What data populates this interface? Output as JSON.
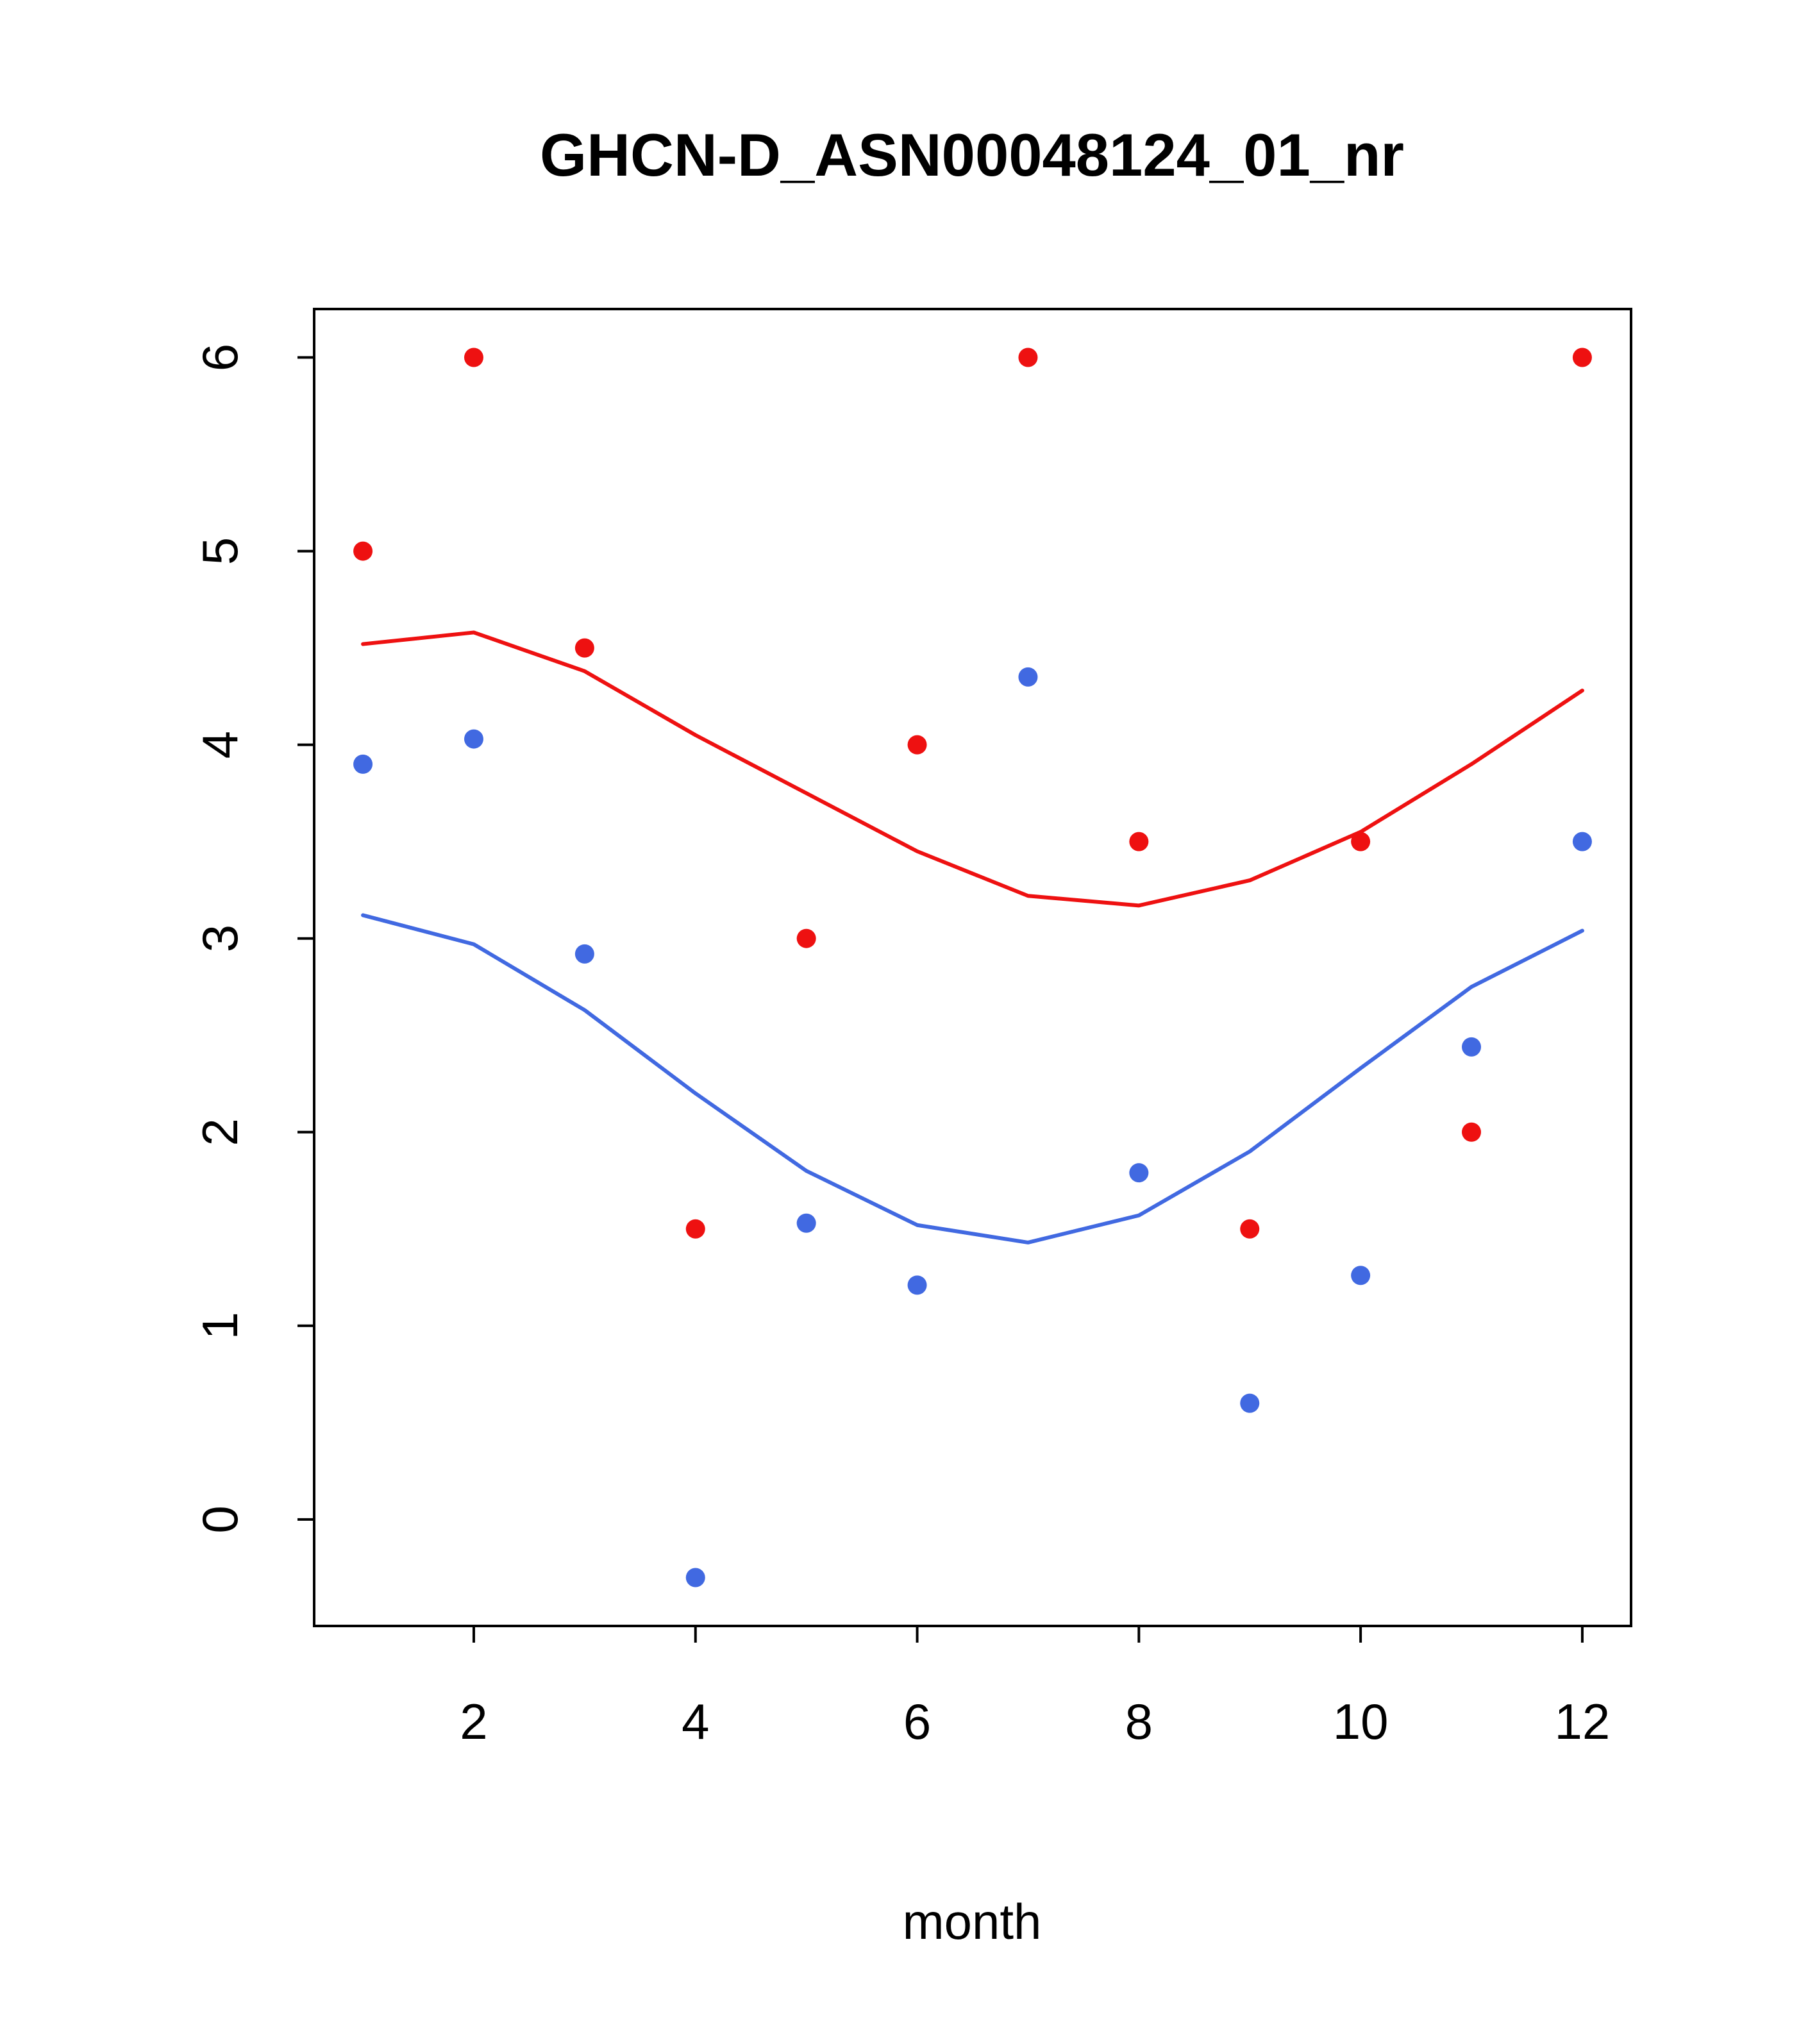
{
  "chart_data": {
    "type": "scatter",
    "title": "GHCN-D_ASN00048124_01_nr",
    "xlabel": "month",
    "ylabel": "",
    "xlim": [
      0.56,
      12.44
    ],
    "ylim": [
      -0.55,
      6.25
    ],
    "x_ticks": [
      2,
      4,
      6,
      8,
      10,
      12
    ],
    "y_ticks": [
      0,
      1,
      2,
      3,
      4,
      5,
      6
    ],
    "grid": false,
    "legend": "none",
    "x": [
      1,
      2,
      3,
      4,
      5,
      6,
      7,
      8,
      9,
      10,
      11,
      12
    ],
    "colors": {
      "red": "#ee1111",
      "blue": "#4169e1",
      "axis": "#000000",
      "background": "#ffffff"
    },
    "series": [
      {
        "name": "red-points",
        "kind": "points",
        "color_key": "red",
        "values": [
          5,
          6,
          4.5,
          1.5,
          3,
          4,
          6,
          3.5,
          1.5,
          3.5,
          2,
          6
        ]
      },
      {
        "name": "blue-points",
        "kind": "points",
        "color_key": "blue",
        "values": [
          3.9,
          4.03,
          2.92,
          -0.3,
          1.53,
          1.21,
          4.35,
          1.79,
          0.6,
          1.26,
          2.44,
          3.5
        ]
      },
      {
        "name": "red-smooth-line",
        "kind": "line",
        "color_key": "red",
        "values": [
          4.52,
          4.58,
          4.38,
          4.05,
          3.75,
          3.45,
          3.22,
          3.17,
          3.3,
          3.55,
          3.9,
          4.28
        ]
      },
      {
        "name": "blue-smooth-line",
        "kind": "line",
        "color_key": "blue",
        "values": [
          3.12,
          2.97,
          2.63,
          2.2,
          1.8,
          1.52,
          1.43,
          1.57,
          1.9,
          2.33,
          2.75,
          3.04
        ]
      }
    ]
  }
}
